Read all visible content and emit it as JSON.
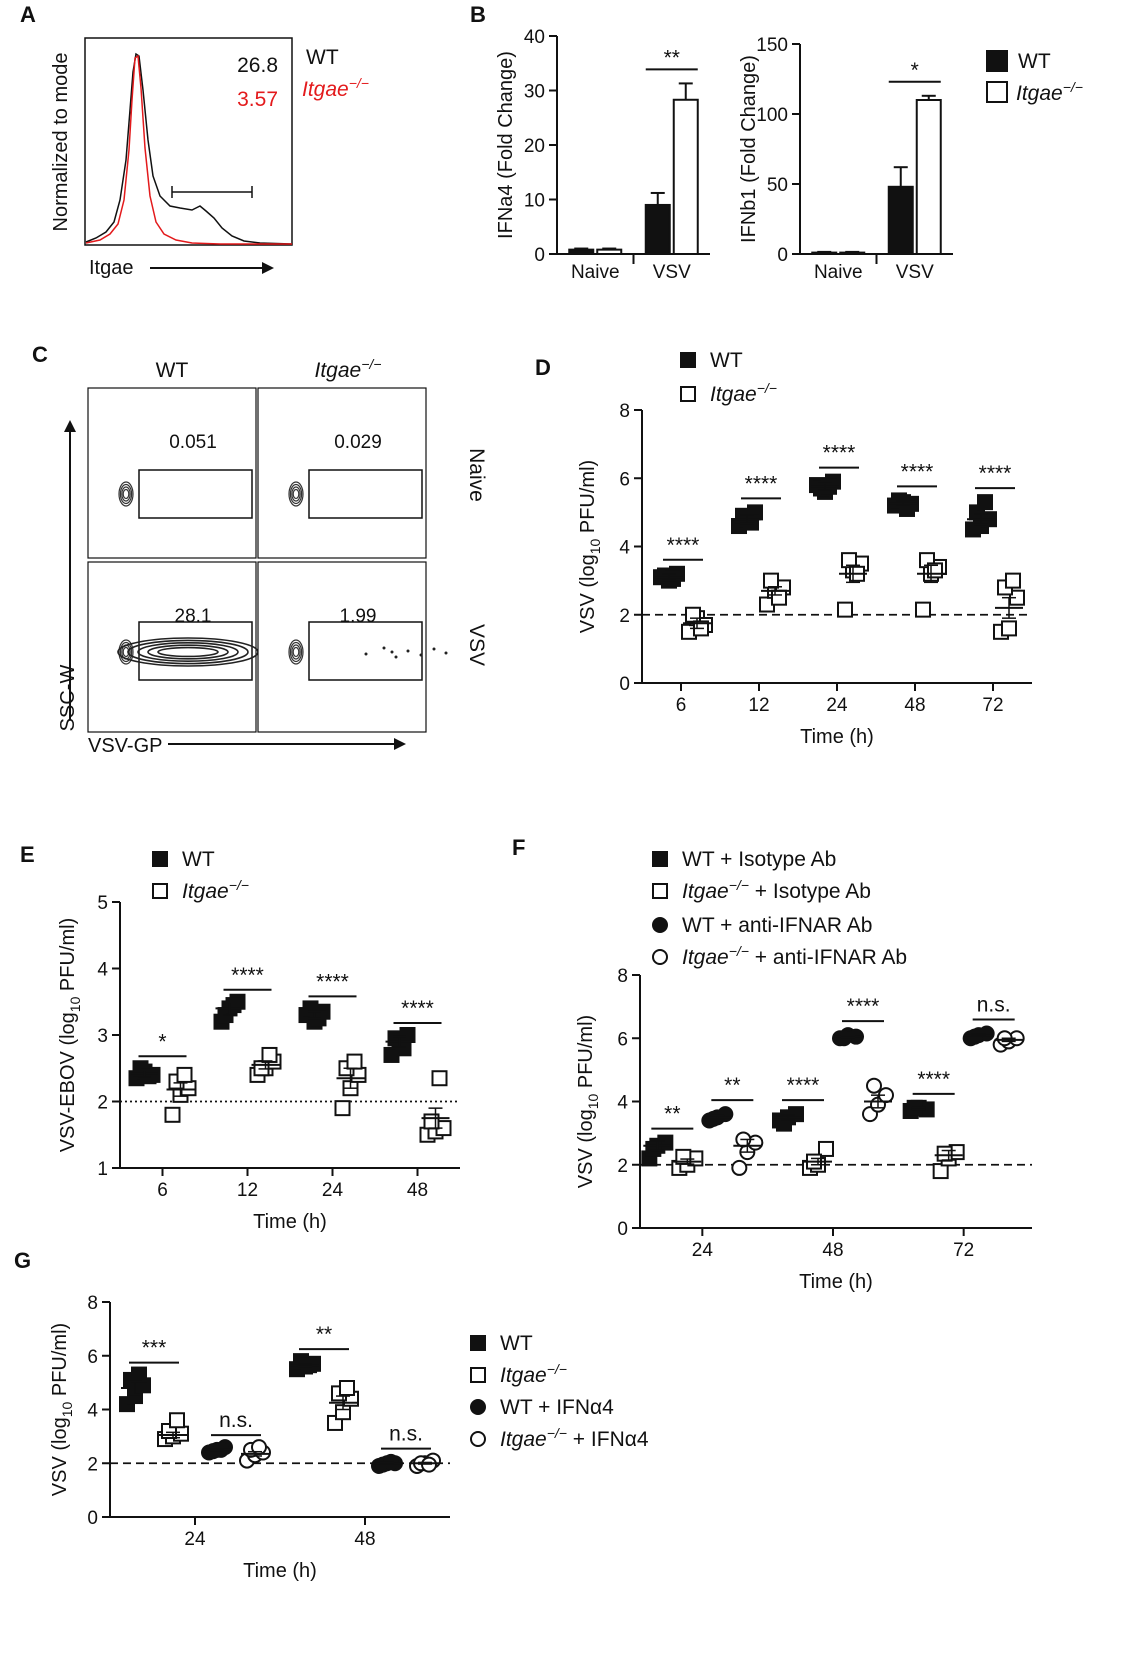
{
  "chart_data": [
    {
      "panel": "A",
      "type": "histogram",
      "title": "",
      "xlabel": "Itgae",
      "ylabel": "Normalized to mode",
      "series": [
        {
          "name": "WT",
          "percent": 26.8,
          "color": "#111111"
        },
        {
          "name": "Itgae",
          "sup": "−/−",
          "percent": 3.57,
          "color": "#e31a1c"
        }
      ]
    },
    {
      "panel": "B1",
      "type": "bar",
      "ylabel": "IFNa4 (Fold Change)",
      "categories": [
        "Naive",
        "VSV"
      ],
      "ylim": [
        0,
        40
      ],
      "yticks": [
        0,
        10,
        20,
        30,
        40
      ],
      "series": [
        {
          "name": "WT",
          "values": [
            0.8,
            9.0
          ],
          "errors": [
            0.2,
            2.2
          ]
        },
        {
          "name": "Itgae−/−",
          "values": [
            0.8,
            28.3
          ],
          "errors": [
            0.2,
            3.0
          ]
        }
      ],
      "sig": [
        {
          "cat": 1,
          "label": "**"
        }
      ]
    },
    {
      "panel": "B2",
      "type": "bar",
      "ylabel": "IFNb1 (Fold Change)",
      "categories": [
        "Naive",
        "VSV"
      ],
      "ylim": [
        0,
        150
      ],
      "yticks": [
        0,
        50,
        100,
        150
      ],
      "series": [
        {
          "name": "WT",
          "values": [
            1,
            48
          ],
          "errors": [
            0.5,
            14
          ]
        },
        {
          "name": "Itgae−/−",
          "values": [
            1,
            110
          ],
          "errors": [
            0.5,
            3
          ]
        }
      ],
      "sig": [
        {
          "cat": 1,
          "label": "*"
        }
      ]
    },
    {
      "panel": "C",
      "type": "flow-grid",
      "columns": [
        "WT",
        "Itgae−/−"
      ],
      "rows": [
        "Naive",
        "VSV"
      ],
      "values": [
        [
          0.051,
          0.029
        ],
        [
          28.1,
          1.99
        ]
      ],
      "xlabel": "VSV-GP",
      "ylabel": "SSC-W"
    },
    {
      "panel": "D",
      "type": "scatter",
      "xlabel": "Time (h)",
      "ylabel": "VSV (log10 PFU/ml)",
      "categories": [
        "6",
        "12",
        "24",
        "48",
        "72"
      ],
      "ylim": [
        0,
        8
      ],
      "yticks": [
        0,
        2,
        4,
        6,
        8
      ],
      "limit_line": 2,
      "series": [
        {
          "name": "WT",
          "marker": "square-filled",
          "points": [
            [
              3.1,
              3.0,
              3.2,
              3.15,
              3.05
            ],
            [
              4.6,
              4.8,
              5.0,
              4.9,
              4.7
            ],
            [
              5.8,
              5.6,
              5.9,
              5.7,
              5.75
            ],
            [
              5.2,
              5.3,
              5.25,
              5.35,
              5.1
            ],
            [
              4.5,
              4.6,
              4.8,
              5.0,
              5.3
            ]
          ],
          "mean": [
            3.1,
            4.8,
            5.75,
            5.25,
            4.8
          ],
          "sem": [
            0.1,
            0.12,
            0.1,
            0.08,
            0.15
          ]
        },
        {
          "name": "Itgae−/−",
          "marker": "square-open",
          "points": [
            [
              1.5,
              1.9,
              1.7,
              2.0,
              1.6
            ],
            [
              2.3,
              2.7,
              2.8,
              3.0,
              2.5
            ],
            [
              2.15,
              3.3,
              3.5,
              3.6,
              3.2
            ],
            [
              2.15,
              3.2,
              3.4,
              3.6,
              3.3
            ],
            [
              1.5,
              1.6,
              2.5,
              2.8,
              3.0
            ]
          ],
          "mean": [
            1.75,
            2.7,
            3.2,
            3.2,
            2.2
          ],
          "sem": [
            0.15,
            0.12,
            0.25,
            0.25,
            0.3
          ]
        }
      ],
      "sig": [
        "****",
        "****",
        "****",
        "****",
        "****"
      ]
    },
    {
      "panel": "E",
      "type": "scatter",
      "xlabel": "Time (h)",
      "ylabel": "VSV-EBOV (log10 PFU/ml)",
      "categories": [
        "6",
        "12",
        "24",
        "48"
      ],
      "ylim": [
        1,
        5
      ],
      "yticks": [
        1,
        2,
        3,
        4,
        5
      ],
      "limit_line": 2,
      "series": [
        {
          "name": "WT",
          "marker": "square-filled",
          "points": [
            [
              2.35,
              2.45,
              2.4,
              2.5,
              2.38
            ],
            [
              3.2,
              3.4,
              3.5,
              3.3,
              3.45
            ],
            [
              3.3,
              3.2,
              3.35,
              3.4,
              3.25
            ],
            [
              2.7,
              2.9,
              3.0,
              2.95,
              2.8
            ]
          ],
          "mean": [
            2.42,
            3.4,
            3.3,
            2.9
          ],
          "sem": [
            0.05,
            0.1,
            0.05,
            0.08
          ]
        },
        {
          "name": "Itgae−/−",
          "marker": "square-open",
          "points": [
            [
              1.8,
              2.1,
              2.2,
              2.3,
              2.4
            ],
            [
              2.4,
              2.5,
              2.6,
              2.5,
              2.7
            ],
            [
              1.9,
              2.2,
              2.4,
              2.5,
              2.6
            ],
            [
              1.5,
              1.55,
              1.6,
              1.7,
              2.35
            ]
          ],
          "mean": [
            2.18,
            2.55,
            2.35,
            1.75
          ],
          "sem": [
            0.1,
            0.06,
            0.15,
            0.15
          ]
        }
      ],
      "sig": [
        "*",
        "****",
        "****",
        "****"
      ]
    },
    {
      "panel": "F",
      "type": "scatter",
      "xlabel": "Time (h)",
      "ylabel": "VSV (log10 PFU/ml)",
      "categories": [
        "24",
        "48",
        "72"
      ],
      "ylim": [
        0,
        8
      ],
      "yticks": [
        0,
        2,
        4,
        6,
        8
      ],
      "limit_line": 2,
      "series": [
        {
          "name": "WT + Isotype Ab",
          "marker": "square-filled",
          "points": [
            [
              2.2,
              2.6,
              2.7,
              2.5
            ],
            [
              3.4,
              3.5,
              3.6,
              3.3
            ],
            [
              3.7,
              3.8,
              3.75,
              3.8
            ]
          ],
          "mean": [
            2.6,
            3.5,
            3.78
          ],
          "sem": [
            0.15,
            0.08,
            0.03
          ]
        },
        {
          "name": "Itgae−/− + Isotype Ab",
          "marker": "square-open",
          "points": [
            [
              1.9,
              2.0,
              2.2,
              2.25
            ],
            [
              1.9,
              2.0,
              2.5,
              2.1
            ],
            [
              1.8,
              2.2,
              2.4,
              2.35
            ]
          ],
          "mean": [
            2.1,
            2.1,
            2.3
          ],
          "sem": [
            0.08,
            0.1,
            0.15
          ]
        },
        {
          "name": "WT + anti-IFNAR Ab",
          "marker": "circle-filled",
          "points": [
            [
              3.4,
              3.5,
              3.6,
              3.45
            ],
            [
              6.0,
              6.1,
              6.05,
              6.0
            ],
            [
              6.0,
              6.1,
              6.15,
              6.05
            ]
          ],
          "mean": [
            3.5,
            6.05,
            6.1
          ],
          "sem": [
            0.05,
            0.03,
            0.03
          ]
        },
        {
          "name": "Itgae−/− + anti-IFNAR Ab",
          "marker": "circle-open",
          "points": [
            [
              1.9,
              2.4,
              2.7,
              2.8
            ],
            [
              3.6,
              3.9,
              4.2,
              4.5
            ],
            [
              5.8,
              5.9,
              6.0,
              6.0
            ]
          ],
          "mean": [
            2.6,
            4.0,
            5.95
          ],
          "sem": [
            0.2,
            0.2,
            0.05
          ]
        }
      ],
      "sig": [
        {
          "pair": [
            0,
            1
          ],
          "cat": 0,
          "label": "**"
        },
        {
          "pair": [
            2,
            3
          ],
          "cat": 0,
          "label": "**"
        },
        {
          "pair": [
            0,
            1
          ],
          "cat": 1,
          "label": "****"
        },
        {
          "pair": [
            2,
            3
          ],
          "cat": 1,
          "label": "****"
        },
        {
          "pair": [
            0,
            1
          ],
          "cat": 2,
          "label": "****"
        },
        {
          "pair": [
            2,
            3
          ],
          "cat": 2,
          "label": "n.s."
        }
      ]
    },
    {
      "panel": "G",
      "type": "scatter",
      "xlabel": "Time (h)",
      "ylabel": "VSV (log10 PFU/ml)",
      "categories": [
        "24",
        "48"
      ],
      "ylim": [
        0,
        8
      ],
      "yticks": [
        0,
        2,
        4,
        6,
        8
      ],
      "limit_line": 2,
      "series": [
        {
          "name": "WT",
          "marker": "square-filled",
          "points": [
            [
              4.2,
              4.5,
              4.9,
              5.1,
              5.3
            ],
            [
              5.5,
              5.6,
              5.7,
              5.8,
              5.65
            ]
          ],
          "mean": [
            4.8,
            5.65
          ],
          "sem": [
            0.25,
            0.05
          ]
        },
        {
          "name": "Itgae−/−",
          "marker": "square-open",
          "points": [
            [
              2.9,
              3.0,
              3.1,
              3.2,
              3.6
            ],
            [
              3.5,
              3.9,
              4.4,
              4.6,
              4.8
            ]
          ],
          "mean": [
            3.05,
            4.25
          ],
          "sem": [
            0.1,
            0.25
          ]
        },
        {
          "name": "WT + IFNα4",
          "marker": "circle-filled",
          "points": [
            [
              2.4,
              2.5,
              2.6,
              2.45,
              2.5
            ],
            [
              1.9,
              2.0,
              2.0,
              1.95,
              2.05
            ]
          ],
          "mean": [
            2.5,
            2.0
          ],
          "sem": [
            0.03,
            0.02
          ]
        },
        {
          "name": "Itgae−/− + IFNα4",
          "marker": "circle-open",
          "points": [
            [
              2.1,
              2.3,
              2.4,
              2.5,
              2.6
            ],
            [
              1.9,
              2.0,
              2.1,
              2.0,
              1.95
            ]
          ],
          "mean": [
            2.35,
            2.0
          ],
          "sem": [
            0.08,
            0.03
          ]
        }
      ],
      "sig": [
        {
          "pair": [
            0,
            1
          ],
          "cat": 0,
          "label": "***"
        },
        {
          "pair": [
            2,
            3
          ],
          "cat": 0,
          "label": "n.s."
        },
        {
          "pair": [
            0,
            1
          ],
          "cat": 1,
          "label": "**"
        },
        {
          "pair": [
            2,
            3
          ],
          "cat": 1,
          "label": "n.s."
        }
      ]
    }
  ]
}
